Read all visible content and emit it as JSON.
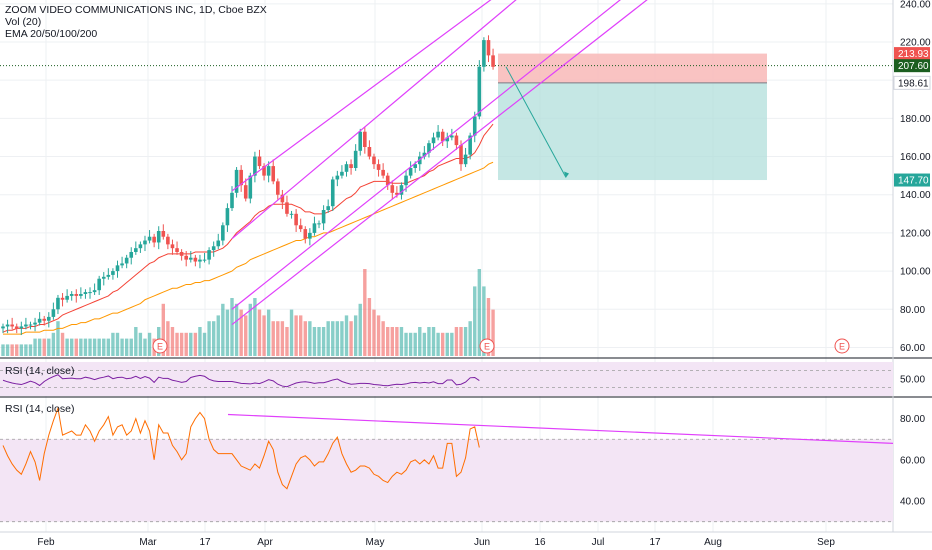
{
  "header": {
    "symbol_line": "ZOOM VIDEO COMMUNICATIONS INC, 1D, Cboe BZX",
    "vol_label": "Vol (20)",
    "ema_label": "EMA 20/50/100/200"
  },
  "rsi_labels": [
    "RSI (14, close)",
    "RSI (14, close)"
  ],
  "colors": {
    "up": "#26a69a",
    "down": "#ef5350",
    "channel": "#e040fb",
    "ema20": "#f44336",
    "ema50": "#ff9800",
    "rsi": "#ff6d00",
    "rsi_band": "#f3e5f5",
    "rsi_small": "#7b1fa2",
    "stop_zone": "#f8b9b7",
    "target_zone": "#b2dfdb",
    "target_arrow": "#26a69a",
    "grid": "#eef0f3"
  },
  "chart_data": [
    {
      "type": "candlestick",
      "title": "ZOOM VIDEO COMMUNICATIONS INC, 1D, Cboe BZX",
      "x_tick_labels": [
        "Feb",
        "Mar",
        "17",
        "Apr",
        "May",
        "Jun",
        "16",
        "Jul",
        "17",
        "Aug",
        "Sep"
      ],
      "y_axis": {
        "ylim": [
          55,
          242
        ],
        "ticks": [
          60,
          80,
          100,
          120,
          140,
          160,
          180,
          200,
          220,
          240
        ]
      },
      "price_labels": [
        {
          "value": 213.93,
          "text": "213.93",
          "color": "#ef5350"
        },
        {
          "value": 207.6,
          "text": "207.60",
          "color": "#1b5e20"
        },
        {
          "value": 198.61,
          "text": "198.61",
          "color": "#ffffff"
        },
        {
          "value": 147.7,
          "text": "147.70",
          "color": "#26a69a"
        }
      ],
      "ohlc_closes": [
        71,
        72,
        71,
        70,
        71,
        72,
        72,
        73,
        75,
        74,
        76,
        80,
        86,
        85,
        87,
        88,
        87,
        88,
        89,
        89,
        90,
        96,
        97,
        98,
        100,
        103,
        104,
        107,
        110,
        112,
        114,
        116,
        118,
        115,
        121,
        118,
        114,
        112,
        110,
        108,
        106,
        107,
        105,
        106,
        106,
        111,
        113,
        116,
        124,
        133,
        141,
        153,
        145,
        138,
        150,
        160,
        155,
        150,
        155,
        147,
        140,
        136,
        130,
        130,
        124,
        122,
        117,
        120,
        125,
        125,
        132,
        134,
        148,
        150,
        152,
        156,
        154,
        163,
        173,
        165,
        160,
        156,
        153,
        150,
        145,
        141,
        140,
        145,
        150,
        154,
        156,
        160,
        162,
        167,
        170,
        173,
        168,
        170,
        171,
        166,
        156,
        161,
        171,
        181,
        207,
        221,
        213,
        207
      ],
      "ema20": [
        68,
        69,
        69,
        70,
        70,
        70,
        71,
        71,
        72,
        72,
        73,
        74,
        75,
        77,
        78,
        79,
        80,
        81,
        82,
        83,
        84,
        85,
        86,
        87,
        89,
        90,
        92,
        94,
        96,
        98,
        100,
        102,
        104,
        105,
        107,
        108,
        109,
        109,
        109,
        109,
        109,
        109,
        110,
        110,
        110,
        110,
        110,
        111,
        112,
        114,
        117,
        120,
        122,
        124,
        126,
        129,
        131,
        132,
        134,
        135,
        135,
        135,
        135,
        135,
        134,
        133,
        131,
        131,
        130,
        130,
        130,
        131,
        132,
        134,
        136,
        138,
        139,
        141,
        144,
        145,
        146,
        147,
        147,
        147,
        147,
        146,
        146,
        146,
        146,
        147,
        148,
        149,
        150,
        152,
        153,
        155,
        156,
        157,
        158,
        159,
        159,
        159,
        160,
        162,
        166,
        171,
        174,
        177
      ],
      "ema50": [
        67,
        67,
        67,
        67,
        67,
        68,
        68,
        68,
        68,
        69,
        69,
        69,
        70,
        70,
        71,
        72,
        72,
        73,
        73,
        74,
        75,
        75,
        76,
        77,
        78,
        78,
        79,
        80,
        81,
        82,
        83,
        85,
        86,
        87,
        88,
        89,
        90,
        91,
        91,
        92,
        93,
        93,
        94,
        94,
        95,
        95,
        96,
        97,
        98,
        99,
        100,
        102,
        103,
        104,
        106,
        107,
        108,
        109,
        110,
        111,
        112,
        113,
        114,
        115,
        116,
        116,
        117,
        118,
        118,
        119,
        120,
        120,
        121,
        122,
        123,
        124,
        125,
        126,
        127,
        128,
        129,
        130,
        131,
        132,
        133,
        134,
        135,
        136,
        137,
        138,
        139,
        140,
        141,
        142,
        143,
        144,
        145,
        146,
        147,
        148,
        149,
        150,
        151,
        152,
        153,
        154,
        156,
        157
      ],
      "channel_lines_endpoints": [
        [
          [
            50,
            142
          ],
          [
            107,
            243
          ]
        ],
        [
          [
            50,
            117
          ],
          [
            107,
            232
          ]
        ],
        [
          [
            50,
            80
          ],
          [
            107,
            189
          ]
        ],
        [
          [
            50,
            72
          ],
          [
            107,
            179
          ]
        ]
      ],
      "annotations": [
        "E",
        "E",
        "E"
      ]
    },
    {
      "type": "bar",
      "title": "Vol (20)",
      "values": [
        2,
        2,
        2,
        2,
        2,
        2,
        2,
        3,
        3,
        3,
        3,
        4,
        6,
        4,
        3,
        3,
        3,
        3,
        3,
        3,
        3,
        3,
        3,
        3,
        4,
        4,
        3,
        3,
        3,
        5,
        4,
        3,
        4,
        3,
        5,
        9,
        6,
        5,
        4,
        4,
        4,
        4,
        4,
        5,
        4,
        6,
        6,
        7,
        9,
        8,
        10,
        9,
        8,
        7,
        9,
        10,
        8,
        7,
        8,
        6,
        6,
        6,
        5,
        8,
        7,
        7,
        6,
        6,
        5,
        5,
        5,
        6,
        6,
        6,
        6,
        7,
        6,
        7,
        9,
        15,
        10,
        8,
        7,
        6,
        5,
        5,
        5,
        5,
        4,
        4,
        4,
        5,
        4,
        5,
        5,
        4,
        4,
        4,
        4,
        5,
        5,
        5,
        6,
        12,
        15,
        12,
        10,
        8
      ]
    },
    {
      "type": "line",
      "title": "RSI (14, close)",
      "ylim": [
        40,
        60
      ],
      "y_ticks": [
        50.0
      ]
    },
    {
      "type": "line",
      "title": "RSI (14, close)",
      "ylim": [
        25,
        90
      ],
      "y_ticks": [
        40.0,
        60.0,
        80.0
      ],
      "values": [
        67,
        62,
        58,
        55,
        53,
        58,
        64,
        59,
        50,
        63,
        72,
        79,
        85,
        72,
        73,
        74,
        72,
        72,
        77,
        74,
        69,
        74,
        77,
        81,
        72,
        76,
        77,
        72,
        74,
        80,
        73,
        79,
        74,
        60,
        77,
        73,
        73,
        67,
        64,
        60,
        63,
        76,
        80,
        83,
        80,
        70,
        65,
        63,
        63,
        63,
        63,
        60,
        57,
        56,
        55,
        58,
        56,
        62,
        69,
        65,
        54,
        48,
        46,
        52,
        58,
        61,
        62,
        60,
        57,
        59,
        59,
        63,
        68,
        71,
        63,
        58,
        54,
        55,
        57,
        57,
        56,
        53,
        52,
        50,
        49,
        52,
        54,
        53,
        55,
        59,
        60,
        58,
        60,
        58,
        62,
        56,
        56,
        68,
        68,
        52,
        54,
        61,
        75,
        76,
        66
      ],
      "trendline": {
        "from": 82,
        "to": 68
      }
    }
  ]
}
